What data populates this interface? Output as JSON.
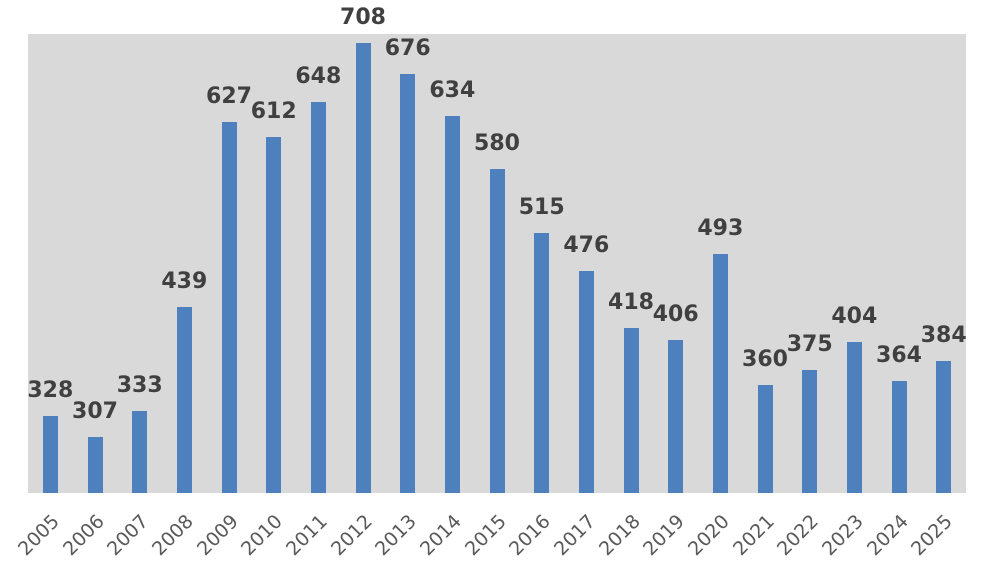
{
  "chart_data": {
    "type": "bar",
    "title": "",
    "xlabel": "",
    "ylabel": "",
    "categories": [
      "2005",
      "2006",
      "2007",
      "2008",
      "2009",
      "2010",
      "2011",
      "2012",
      "2013",
      "2014",
      "2015",
      "2016",
      "2017",
      "2018",
      "2019",
      "2020",
      "2021",
      "2022",
      "2023",
      "2024",
      "2025"
    ],
    "values": [
      328,
      307,
      333,
      439,
      627,
      612,
      648,
      708,
      676,
      634,
      580,
      515,
      476,
      418,
      406,
      493,
      360,
      375,
      404,
      364,
      384
    ],
    "ylim": [
      250,
      717
    ],
    "y_axis_visible": false,
    "x_axis_line_visible": false,
    "gridlines": false,
    "legend": "none",
    "data_labels": true,
    "x_tick_rotation_deg": -45,
    "colors": {
      "bar": "#4E80BD",
      "plot_background": "#D9D9D9",
      "page_background": "#FFFFFF",
      "value_label": "#404040",
      "tick_label": "#595959"
    }
  }
}
